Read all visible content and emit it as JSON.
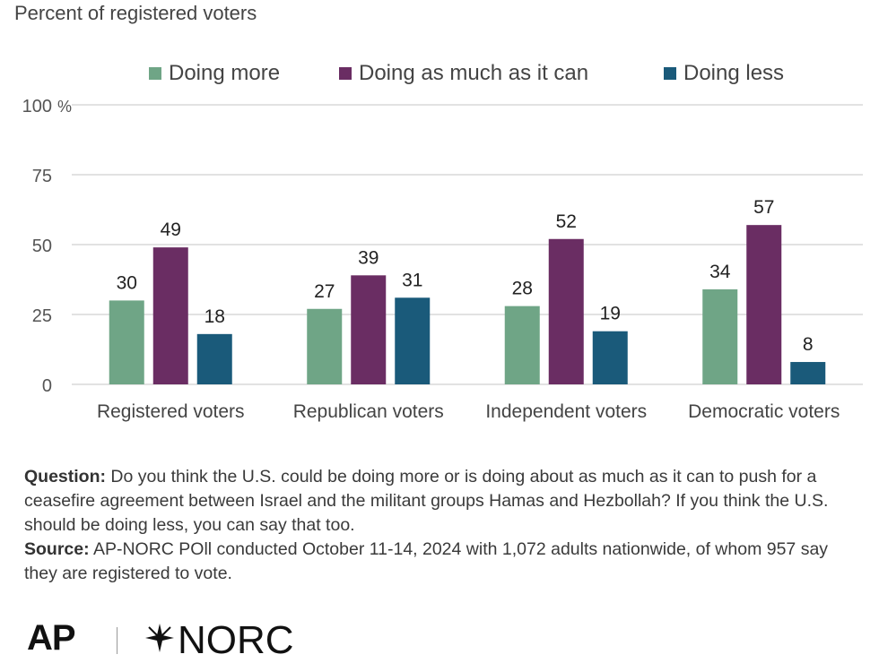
{
  "subtitle": "Percent of registered voters",
  "legend": [
    {
      "label": "Doing more",
      "color": "#6fa586"
    },
    {
      "label": "Doing as much as it can",
      "color": "#6a2d63"
    },
    {
      "label": "Doing less",
      "color": "#1a5a7a"
    }
  ],
  "chart_data": {
    "type": "bar",
    "categories": [
      "Registered voters",
      "Republican voters",
      "Independent voters",
      "Democratic voters"
    ],
    "series": [
      {
        "name": "Doing more",
        "values": [
          30,
          27,
          28,
          34
        ],
        "color": "#6fa586"
      },
      {
        "name": "Doing as much as it can",
        "values": [
          49,
          39,
          52,
          57
        ],
        "color": "#6a2d63"
      },
      {
        "name": "Doing less",
        "values": [
          18,
          31,
          19,
          8
        ],
        "color": "#1a5a7a"
      }
    ],
    "ylim": [
      0,
      100
    ],
    "yticks": [
      0,
      25,
      50,
      75,
      100
    ],
    "ytick_labels": [
      "0",
      "25",
      "50",
      "75",
      "100"
    ],
    "y_unit": "%",
    "grid": true,
    "legend_position": "top"
  },
  "footnote": {
    "question_label": "Question:",
    "question_text": " Do you think the U.S. could be doing more or is doing about as much as it can to push for a ceasefire agreement between Israel and the militant groups Hamas and Hezbollah? If you think the U.S. should be doing less, you can say that too.",
    "source_label": "Source:",
    "source_text": " AP-NORC POll conducted October 11-14, 2024 with 1,072 adults nationwide, of whom 957 say they are registered to vote."
  },
  "logos": {
    "ap": "AP",
    "norc": "NORC"
  }
}
